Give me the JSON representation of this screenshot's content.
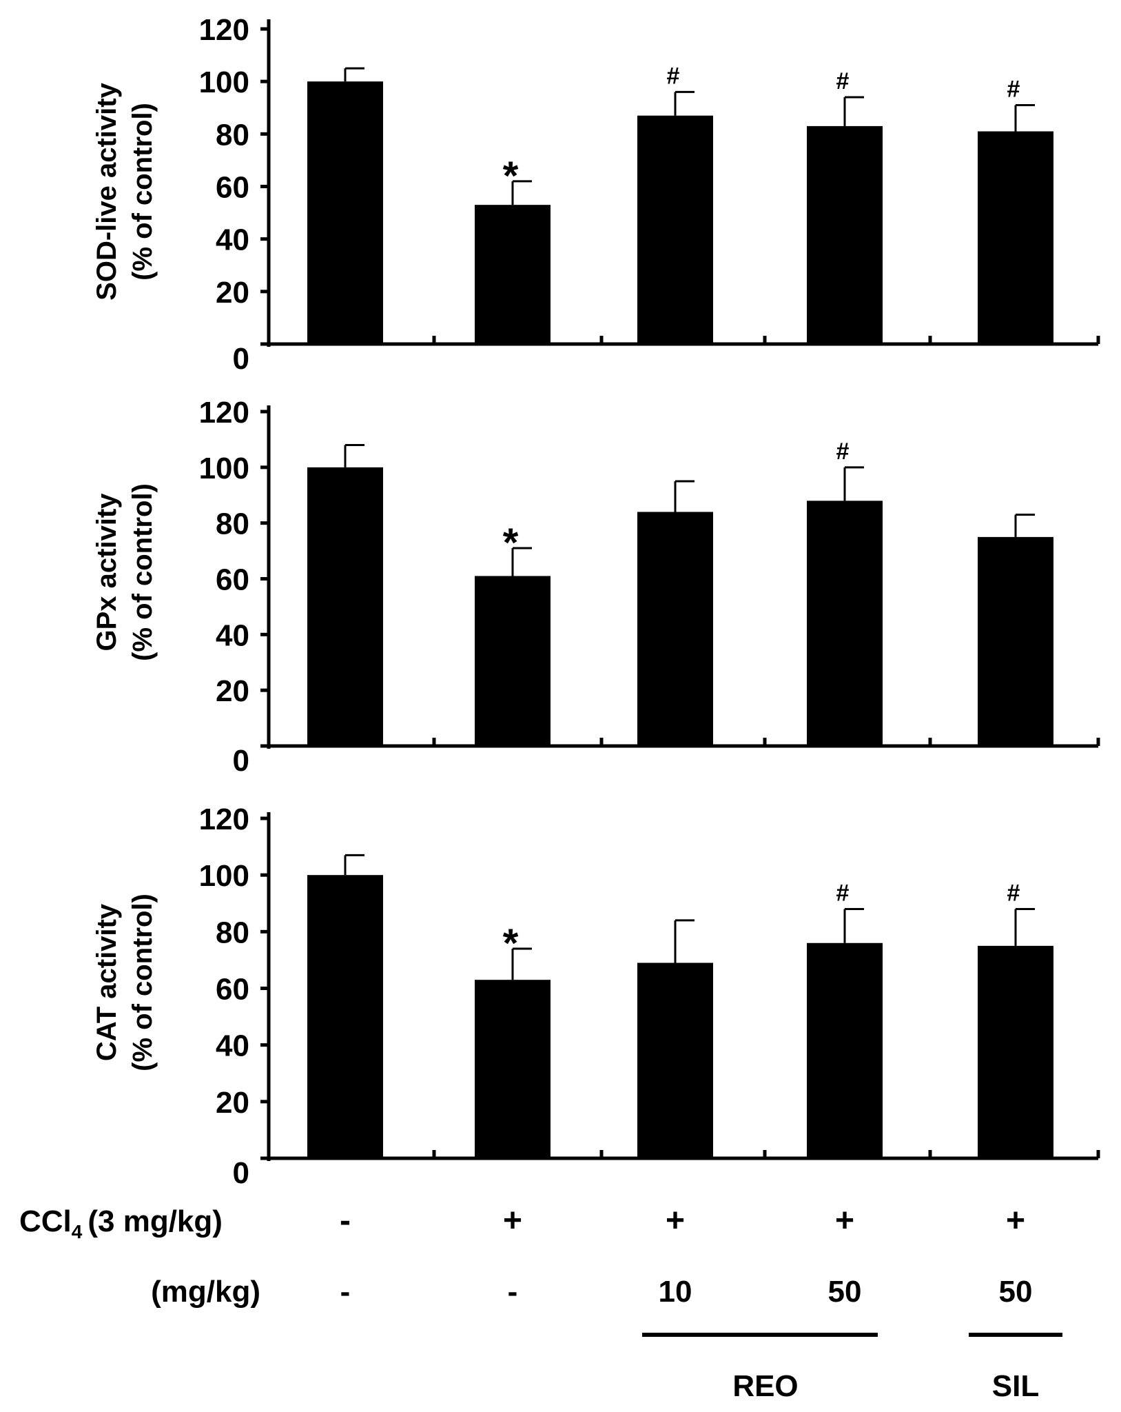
{
  "chart_data": [
    {
      "type": "bar",
      "title": "",
      "ylabel_line1": "SOD-live activity",
      "ylabel_line2": "(% of control)",
      "xlabel": "",
      "ylim": [
        0,
        120
      ],
      "yticks": [
        0,
        20,
        40,
        60,
        80,
        100,
        120
      ],
      "grid": false,
      "legend": "none",
      "categories": [
        "Control",
        "CCl4",
        "CCl4 + REO 10",
        "CCl4 + REO 50",
        "CCl4 + SIL 50"
      ],
      "values": [
        100,
        53,
        87,
        83,
        81
      ],
      "errors": [
        5,
        9,
        9,
        11,
        10
      ],
      "annotations": [
        "",
        "*",
        "#",
        "#",
        "#"
      ]
    },
    {
      "type": "bar",
      "title": "",
      "ylabel_line1": "GPx  activity",
      "ylabel_line2": "(% of control)",
      "xlabel": "",
      "ylim": [
        0,
        120
      ],
      "yticks": [
        0,
        20,
        40,
        60,
        80,
        100,
        120
      ],
      "grid": false,
      "legend": "none",
      "categories": [
        "Control",
        "CCl4",
        "CCl4 + REO 10",
        "CCl4 + REO 50",
        "CCl4 + SIL 50"
      ],
      "values": [
        100,
        61,
        84,
        88,
        75
      ],
      "errors": [
        8,
        10,
        11,
        12,
        8
      ],
      "annotations": [
        "",
        "*",
        "",
        "#",
        ""
      ]
    },
    {
      "type": "bar",
      "title": "",
      "ylabel_line1": "CAT activity",
      "ylabel_line2": "(% of control)",
      "xlabel": "",
      "ylim": [
        0,
        120
      ],
      "yticks": [
        0,
        20,
        40,
        60,
        80,
        100,
        120
      ],
      "grid": false,
      "legend": "none",
      "categories": [
        "Control",
        "CCl4",
        "CCl4 + REO 10",
        "CCl4 + REO 50",
        "CCl4 + SIL 50"
      ],
      "values": [
        100,
        63,
        69,
        76,
        75
      ],
      "errors": [
        7,
        11,
        15,
        12,
        13
      ],
      "annotations": [
        "",
        "*",
        "",
        "#",
        "#"
      ]
    }
  ],
  "treatment_table": {
    "ccl4_row_label": "CCl",
    "ccl4_row_subscript": "4",
    "ccl4_row_dose": "(3 mg/kg)",
    "ccl4_values": [
      "-",
      "+",
      "+",
      "+",
      "+"
    ],
    "dose_row_label": "(mg/kg)",
    "dose_values": [
      "-",
      "-",
      "10",
      "50",
      "50"
    ],
    "groups": [
      {
        "label": "REO",
        "first_bar": 2,
        "last_bar": 3
      },
      {
        "label": "SIL",
        "first_bar": 4,
        "last_bar": 4
      }
    ]
  }
}
